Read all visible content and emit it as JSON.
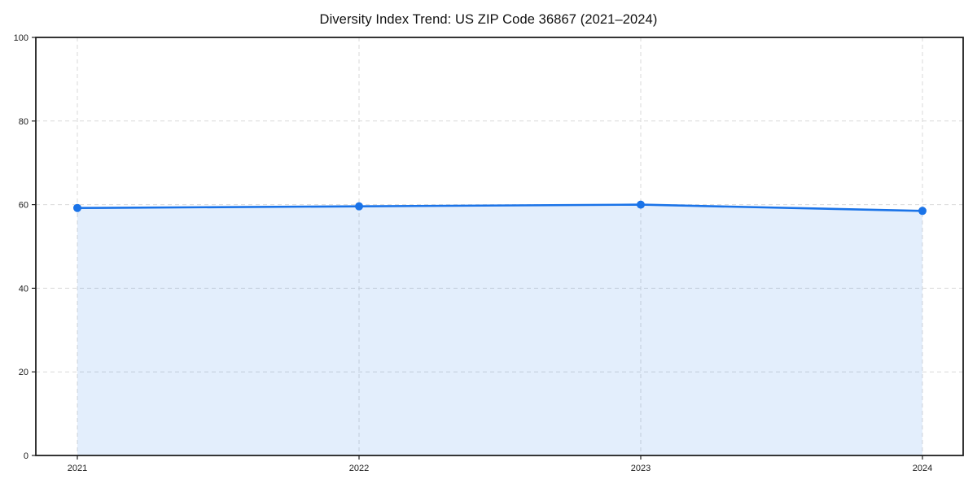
{
  "chart_data": {
    "type": "line",
    "title": "Diversity Index Trend: US ZIP Code 36867 (2021–2024)",
    "categories": [
      "2021",
      "2022",
      "2023",
      "2024"
    ],
    "series": [
      {
        "name": "Diversity Index",
        "values": [
          59.2,
          59.6,
          60.0,
          58.5
        ]
      }
    ],
    "xlabel": "",
    "ylabel": "",
    "ylim": [
      0,
      100
    ],
    "yticks": [
      0,
      20,
      40,
      60,
      80,
      100
    ],
    "grid": true,
    "grid_style": "dashed",
    "legend_position": "none",
    "area_fill": true,
    "marker": "circle",
    "colors": {
      "line": "#1a73e8",
      "fill": "rgba(26,115,232,0.12)",
      "grid": "#d9d9d9",
      "spine": "#1f1f1f",
      "tick_label": "#1a1a1a",
      "background": "#ffffff"
    }
  }
}
